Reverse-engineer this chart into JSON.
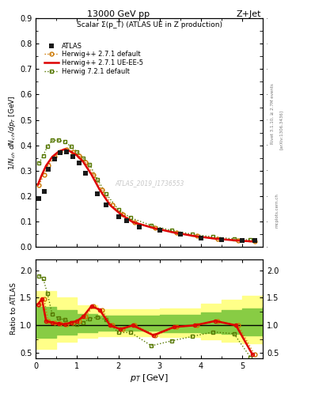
{
  "title_top": "13000 GeV pp",
  "title_right": "Z+Jet",
  "plot_title": "Scalar Σ(p_T) (ATLAS UE in Z production)",
  "watermark": "ATLAS_2019_I1736553",
  "rivet_text": "Rivet 3.1.10, ≥ 2.7M events",
  "arxiv_text": "[arXiv:1306.3436]",
  "mcplots_text": "mcplots.cern.ch",
  "ylabel_main": "1/N$_{ch}$ dN$_{ch}$/dp$_T$ [GeV]",
  "ylabel_ratio": "Ratio to ATLAS",
  "xlabel": "p$_T$ [GeV]",
  "xlim": [
    0,
    5.5
  ],
  "ylim_main": [
    0,
    0.9
  ],
  "ylim_ratio": [
    0.4,
    2.2
  ],
  "yticks_main": [
    0.0,
    0.1,
    0.2,
    0.3,
    0.4,
    0.5,
    0.6,
    0.7,
    0.8,
    0.9
  ],
  "yticks_ratio": [
    0.5,
    1.0,
    1.5,
    2.0
  ],
  "xticks": [
    0,
    1,
    2,
    3,
    4,
    5
  ],
  "atlas_x": [
    0.08,
    0.2,
    0.3,
    0.45,
    0.6,
    0.75,
    0.9,
    1.05,
    1.2,
    1.5,
    1.7,
    2.0,
    2.2,
    2.5,
    3.0,
    3.5,
    4.0,
    4.5,
    5.0,
    5.3
  ],
  "atlas_y": [
    0.19,
    0.22,
    0.305,
    0.345,
    0.37,
    0.375,
    0.355,
    0.33,
    0.29,
    0.21,
    0.165,
    0.12,
    0.105,
    0.08,
    0.065,
    0.05,
    0.035,
    0.028,
    0.025,
    0.025
  ],
  "hw271d_x": [
    0.08,
    0.2,
    0.3,
    0.45,
    0.6,
    0.75,
    0.9,
    1.05,
    1.2,
    1.4,
    1.6,
    1.85,
    2.1,
    2.4,
    2.9,
    3.4,
    3.9,
    4.4,
    4.9,
    5.3
  ],
  "hw271d_y": [
    0.245,
    0.285,
    0.32,
    0.355,
    0.375,
    0.385,
    0.375,
    0.36,
    0.335,
    0.285,
    0.225,
    0.165,
    0.13,
    0.098,
    0.075,
    0.057,
    0.043,
    0.033,
    0.026,
    0.022
  ],
  "hw271ue_x": [
    0.05,
    0.15,
    0.25,
    0.4,
    0.55,
    0.7,
    0.85,
    1.0,
    1.15,
    1.35,
    1.55,
    1.8,
    2.05,
    2.35,
    2.85,
    3.35,
    3.85,
    4.35,
    4.85,
    5.25
  ],
  "hw271ue_y": [
    0.245,
    0.285,
    0.32,
    0.355,
    0.375,
    0.385,
    0.375,
    0.36,
    0.335,
    0.285,
    0.225,
    0.165,
    0.13,
    0.098,
    0.075,
    0.057,
    0.043,
    0.033,
    0.026,
    0.022
  ],
  "hw721d_x": [
    0.08,
    0.18,
    0.28,
    0.4,
    0.55,
    0.7,
    0.85,
    1.0,
    1.15,
    1.3,
    1.5,
    1.7,
    2.0,
    2.3,
    2.8,
    3.3,
    3.8,
    4.3,
    4.8,
    5.2
  ],
  "hw721d_y": [
    0.33,
    0.36,
    0.395,
    0.42,
    0.42,
    0.415,
    0.395,
    0.375,
    0.35,
    0.325,
    0.265,
    0.21,
    0.148,
    0.115,
    0.085,
    0.065,
    0.05,
    0.04,
    0.032,
    0.028
  ],
  "ratio_hw271d_x": [
    0.08,
    0.2,
    0.3,
    0.45,
    0.6,
    0.75,
    0.9,
    1.05,
    1.2,
    1.4,
    1.6,
    1.85,
    2.1,
    2.4,
    2.9,
    3.4,
    3.9,
    4.4,
    4.9,
    5.3
  ],
  "ratio_hw271d_y": [
    1.38,
    1.48,
    1.08,
    1.05,
    1.03,
    1.02,
    1.05,
    1.08,
    1.16,
    1.35,
    1.28,
    1.0,
    0.93,
    1.0,
    0.82,
    0.97,
    1.0,
    1.08,
    1.0,
    0.47
  ],
  "ratio_hw271ue_x": [
    0.05,
    0.15,
    0.25,
    0.4,
    0.55,
    0.7,
    0.85,
    1.0,
    1.15,
    1.35,
    1.55,
    1.8,
    2.05,
    2.35,
    2.85,
    3.35,
    3.85,
    4.35,
    4.85,
    5.25
  ],
  "ratio_hw271ue_y": [
    1.38,
    1.48,
    1.08,
    1.05,
    1.03,
    1.02,
    1.05,
    1.08,
    1.16,
    1.35,
    1.28,
    1.0,
    0.93,
    1.0,
    0.82,
    0.97,
    1.0,
    1.08,
    1.0,
    0.47
  ],
  "ratio_hw721d_x": [
    0.08,
    0.18,
    0.28,
    0.4,
    0.55,
    0.7,
    0.85,
    1.0,
    1.15,
    1.3,
    1.5,
    1.7,
    2.0,
    2.3,
    2.8,
    3.3,
    3.8,
    4.3,
    4.8,
    5.2
  ],
  "ratio_hw721d_y": [
    1.9,
    1.85,
    1.58,
    1.2,
    1.13,
    1.1,
    1.05,
    1.02,
    1.05,
    1.12,
    1.15,
    1.1,
    0.87,
    0.87,
    0.63,
    0.72,
    0.8,
    0.88,
    0.85,
    0.42
  ],
  "band_yellow_edges": [
    0.0,
    0.5,
    1.0,
    1.5,
    2.0,
    2.5,
    3.0,
    3.5,
    4.0,
    4.5,
    5.0,
    5.5
  ],
  "band_yellow_lo": [
    0.58,
    0.7,
    0.77,
    0.81,
    0.81,
    0.81,
    0.79,
    0.79,
    0.74,
    0.71,
    0.67,
    0.64
  ],
  "band_yellow_hi": [
    1.62,
    1.5,
    1.37,
    1.29,
    1.29,
    1.29,
    1.31,
    1.31,
    1.39,
    1.46,
    1.53,
    1.56
  ],
  "band_green_edges": [
    0.0,
    0.5,
    1.0,
    1.5,
    2.0,
    2.5,
    3.0,
    3.5,
    4.0,
    4.5,
    5.0,
    5.5
  ],
  "band_green_lo": [
    0.77,
    0.83,
    0.87,
    0.9,
    0.9,
    0.9,
    0.88,
    0.88,
    0.86,
    0.84,
    0.82,
    0.8
  ],
  "band_green_hi": [
    1.33,
    1.27,
    1.21,
    1.17,
    1.17,
    1.17,
    1.19,
    1.19,
    1.23,
    1.27,
    1.31,
    1.33
  ],
  "color_atlas": "#1a1a1a",
  "color_hw271d": "#cc7700",
  "color_hw271ue": "#dd0000",
  "color_hw721d": "#557700",
  "color_band_yellow": "#ffff88",
  "color_band_green": "#88cc44",
  "bg_color": "#ffffff"
}
